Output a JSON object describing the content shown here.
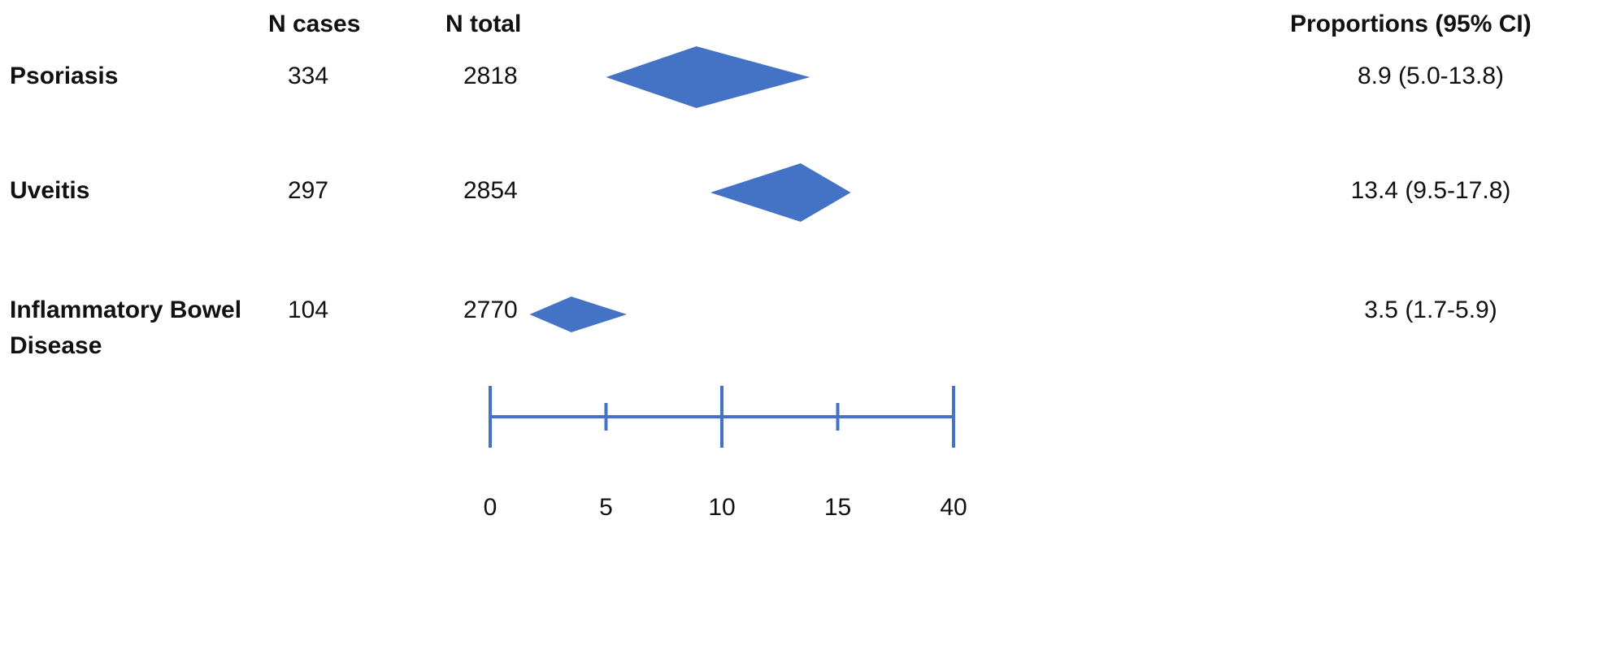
{
  "table": {
    "headers": {
      "cases": "N cases",
      "total": "N total",
      "proportions": "Proportions (95% CI)"
    },
    "rows": [
      {
        "label": "Psoriasis",
        "cases": "334",
        "total": "2818",
        "proportion": "8.9 (5.0-13.8)"
      },
      {
        "label": "Uveitis",
        "cases": "297",
        "total": "2854",
        "proportion": "13.4 (9.5-17.8)"
      },
      {
        "label": "Inflammatory Bowel Disease",
        "cases": "104",
        "total": "2770",
        "proportion": "3.5 (1.7-5.9)"
      }
    ]
  },
  "chart_data": {
    "type": "forest",
    "title": "",
    "xlabel": "",
    "axis": {
      "tick_labels": [
        "0",
        "5",
        "10",
        "15",
        "40"
      ],
      "tick_style": [
        "major",
        "minor",
        "major",
        "minor",
        "major"
      ]
    },
    "series": [
      {
        "category": "Psoriasis",
        "estimate": 8.9,
        "ci_low": 5.0,
        "ci_high": 13.8
      },
      {
        "category": "Uveitis",
        "estimate": 13.4,
        "ci_low": 9.5,
        "ci_high": 17.8
      },
      {
        "category": "Inflammatory Bowel Disease",
        "estimate": 3.5,
        "ci_low": 1.7,
        "ci_high": 5.9
      }
    ],
    "colors": {
      "diamond": "#4472C4",
      "axis": "#4472C4"
    }
  }
}
